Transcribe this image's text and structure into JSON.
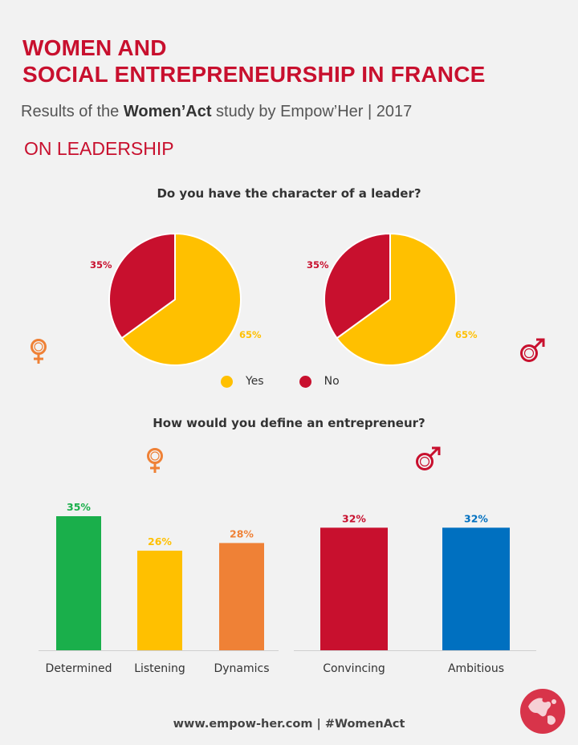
{
  "header": {
    "title_line1": "WOMEN AND",
    "title_line2": "SOCIAL ENTREPRENEURSHIP IN FRANCE",
    "subtitle_pre": "Results of the ",
    "subtitle_bold": "Women’Act",
    "subtitle_post": " study by Empow’Her | 2017",
    "section": "ON LEADERSHIP"
  },
  "colors": {
    "title_red": "#c8102e",
    "yes_yellow": "#ffc000",
    "no_red": "#c8102e",
    "green": "#1aaf4b",
    "orange": "#ef8136",
    "blue": "#0070c0",
    "female_icon": "#ef8136",
    "male_icon": "#c8102e"
  },
  "icons": {
    "female": "female-symbol-icon",
    "male": "male-symbol-icon",
    "logo": "empowher-globe-logo-icon"
  },
  "legend": {
    "yes": "Yes",
    "no": "No"
  },
  "questions": {
    "leader": "Do you have the character of a leader?",
    "entrepreneur": "How would you define an entrepreneur?"
  },
  "footer": "www.empow-her.com  |  #WomenAct",
  "chart_data": [
    {
      "type": "pie",
      "title": "Do you have the character of a leader?",
      "group": "female",
      "slices": [
        {
          "label": "Yes",
          "value": 65,
          "display": "65%",
          "color": "#ffc000"
        },
        {
          "label": "No",
          "value": 35,
          "display": "35%",
          "color": "#c8102e"
        }
      ]
    },
    {
      "type": "pie",
      "title": "Do you have the character of a leader?",
      "group": "male",
      "slices": [
        {
          "label": "Yes",
          "value": 65,
          "display": "65%",
          "color": "#ffc000"
        },
        {
          "label": "No",
          "value": 35,
          "display": "35%",
          "color": "#c8102e"
        }
      ]
    },
    {
      "type": "bar",
      "title": "How would you define an entrepreneur?",
      "group": "female",
      "categories": [
        "Determined",
        "Listening",
        "Dynamics"
      ],
      "values": [
        35,
        26,
        28
      ],
      "labels": [
        "35%",
        "26%",
        "28%"
      ],
      "colors": [
        "#1aaf4b",
        "#ffc000",
        "#ef8136"
      ]
    },
    {
      "type": "bar",
      "title": "How would you define an entrepreneur?",
      "group": "male",
      "categories": [
        "Convincing",
        "Ambitious"
      ],
      "values": [
        32,
        32
      ],
      "labels": [
        "32%",
        "32%"
      ],
      "colors": [
        "#c8102e",
        "#0070c0"
      ]
    }
  ]
}
